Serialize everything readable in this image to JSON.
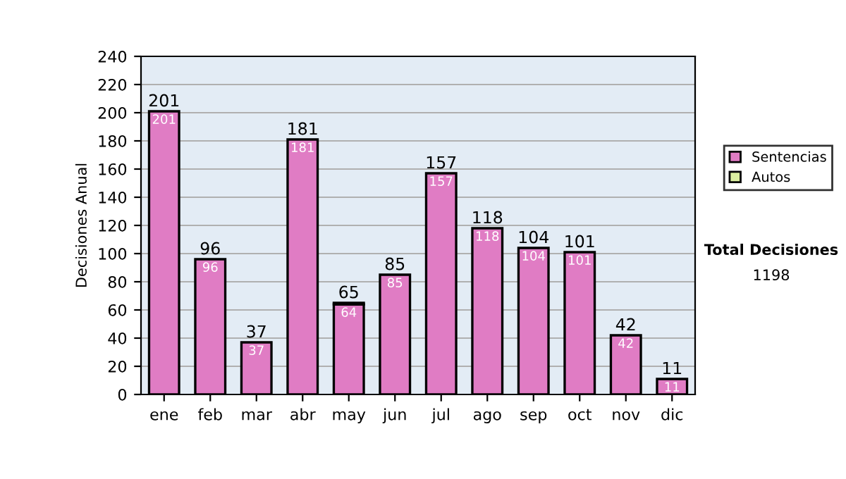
{
  "chart_data": {
    "type": "bar",
    "stacked": true,
    "ylabel": "Decisiones Anual",
    "categories": [
      "ene",
      "feb",
      "mar",
      "abr",
      "may",
      "jun",
      "jul",
      "ago",
      "sep",
      "oct",
      "nov",
      "dic"
    ],
    "series": [
      {
        "name": "Sentencias",
        "color": "#e07cc4",
        "values": [
          201,
          96,
          37,
          181,
          64,
          85,
          157,
          118,
          104,
          101,
          42,
          11
        ],
        "value_labels": [
          "201",
          "96",
          "37",
          "181",
          "64",
          "85",
          "157",
          "118",
          "104",
          "101",
          "42",
          "11"
        ]
      },
      {
        "name": "Autos",
        "color": "#dcf0a0",
        "values": [
          null,
          null,
          null,
          null,
          1,
          null,
          null,
          null,
          null,
          null,
          null,
          null
        ]
      }
    ],
    "totals": [
      "201",
      "96",
      "37",
      "181",
      "65",
      "85",
      "157",
      "118",
      "104",
      "101",
      "42",
      "11"
    ],
    "ylim": [
      0,
      240
    ],
    "yticks": [
      0,
      20,
      40,
      60,
      80,
      100,
      120,
      140,
      160,
      180,
      200,
      220,
      240
    ],
    "grid": "y",
    "legend": "right",
    "annotations": [
      "Total Decisiones",
      "1198"
    ]
  }
}
